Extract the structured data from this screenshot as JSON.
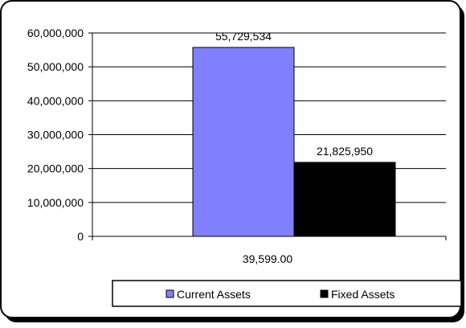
{
  "chart_data": {
    "type": "bar",
    "categories": [
      "39,599.00"
    ],
    "series": [
      {
        "name": "Current Assets",
        "values": [
          55729534
        ],
        "color": "#8080ff",
        "data_label": "55,729,534"
      },
      {
        "name": "Fixed Assets",
        "values": [
          21825950
        ],
        "color": "#000000",
        "data_label": "21,825,950"
      }
    ],
    "ylim": [
      0,
      60000000
    ],
    "yticks": [
      0,
      10000000,
      20000000,
      30000000,
      40000000,
      50000000,
      60000000
    ],
    "ytick_labels": [
      "0",
      "10,000,000",
      "20,000,000",
      "30,000,000",
      "40,000,000",
      "50,000,000",
      "60,000,000"
    ],
    "grid": true,
    "legend_position": "bottom",
    "title": "",
    "xlabel": "",
    "ylabel": ""
  }
}
